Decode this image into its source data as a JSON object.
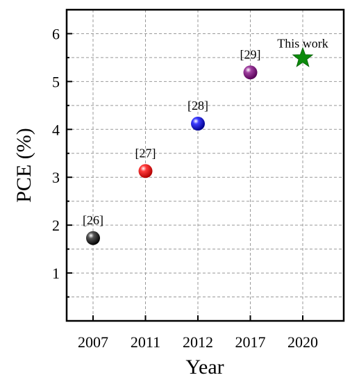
{
  "chart_data": {
    "type": "scatter",
    "title": "",
    "xlabel": "Year",
    "ylabel": "PCE (%)",
    "categories": [
      "2007",
      "2011",
      "2012",
      "2017",
      "2020"
    ],
    "ylim": [
      0,
      6.5
    ],
    "yticks": [
      1,
      2,
      3,
      4,
      5,
      6
    ],
    "grid": true,
    "points": [
      {
        "category": "2007",
        "value": 1.73,
        "label": "[26]",
        "color": "#000000",
        "marker": "sphere"
      },
      {
        "category": "2011",
        "value": 3.13,
        "label": "[27]",
        "color": "#e80000",
        "marker": "sphere"
      },
      {
        "category": "2012",
        "value": 4.12,
        "label": "[28]",
        "color": "#0000e0",
        "marker": "sphere"
      },
      {
        "category": "2017",
        "value": 5.19,
        "label": "[29]",
        "color": "#800080",
        "marker": "sphere"
      },
      {
        "category": "2020",
        "value": 5.49,
        "label": "This work",
        "color": "#0b8a0b",
        "marker": "star"
      }
    ]
  }
}
